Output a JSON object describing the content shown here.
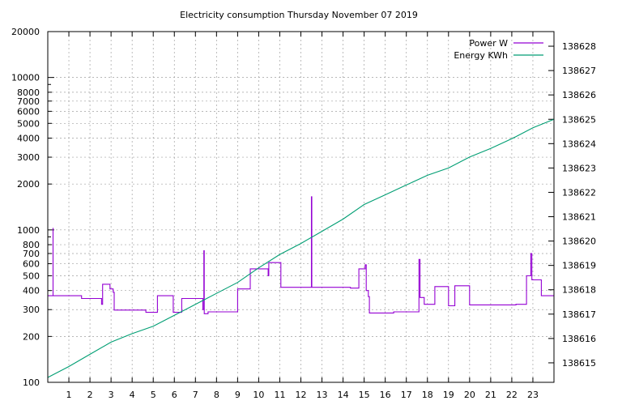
{
  "chart_data": {
    "type": "line",
    "title": "Electricity consumption Thursday November 07 2019",
    "xlabel": "",
    "ylabel": "",
    "y2label": "",
    "xlim": [
      0,
      24
    ],
    "ylim": [
      100,
      20000
    ],
    "yscale": "log",
    "y2lim": [
      138614.2,
      138628.6
    ],
    "x_ticks": [
      "1",
      "2",
      "3",
      "4",
      "5",
      "6",
      "7",
      "8",
      "9",
      "10",
      "11",
      "12",
      "13",
      "14",
      "15",
      "16",
      "17",
      "18",
      "19",
      "20",
      "21",
      "22",
      "23"
    ],
    "y_ticks": [
      "100",
      "200",
      "300",
      "400",
      "500",
      "600",
      "700",
      "800",
      "1000",
      "2000",
      "3000",
      "4000",
      "5000",
      "6000",
      "7000",
      "8000",
      "10000",
      "20000"
    ],
    "y2_ticks": [
      "138615",
      "138616",
      "138617",
      "138618",
      "138619",
      "138620",
      "138621",
      "138622",
      "138623",
      "138624",
      "138625",
      "138626",
      "138627",
      "138628"
    ],
    "grid": true,
    "legend_position": "top-right",
    "series": [
      {
        "name": "Power W",
        "axis": "left",
        "color": "#9400d3",
        "points": [
          [
            0,
            370
          ],
          [
            0.25,
            370
          ],
          [
            0.25,
            1030
          ],
          [
            0.25,
            370
          ],
          [
            1.6,
            370
          ],
          [
            1.6,
            355
          ],
          [
            2.55,
            355
          ],
          [
            2.55,
            325
          ],
          [
            2.6,
            325
          ],
          [
            2.6,
            440
          ],
          [
            2.95,
            440
          ],
          [
            2.95,
            410
          ],
          [
            3.1,
            410
          ],
          [
            3.1,
            390
          ],
          [
            3.15,
            390
          ],
          [
            3.15,
            298
          ],
          [
            4.65,
            298
          ],
          [
            4.65,
            288
          ],
          [
            5.2,
            288
          ],
          [
            5.2,
            370
          ],
          [
            5.95,
            370
          ],
          [
            5.95,
            288
          ],
          [
            6.35,
            288
          ],
          [
            6.35,
            355
          ],
          [
            7.35,
            355
          ],
          [
            7.35,
            300
          ],
          [
            7.4,
            300
          ],
          [
            7.4,
            730
          ],
          [
            7.42,
            730
          ],
          [
            7.42,
            282
          ],
          [
            7.6,
            282
          ],
          [
            7.6,
            290
          ],
          [
            9.0,
            290
          ],
          [
            9.0,
            410
          ],
          [
            9.6,
            410
          ],
          [
            9.6,
            555
          ],
          [
            10.45,
            555
          ],
          [
            10.45,
            500
          ],
          [
            10.48,
            500
          ],
          [
            10.48,
            610
          ],
          [
            11.05,
            610
          ],
          [
            11.05,
            420
          ],
          [
            12.5,
            420
          ],
          [
            12.5,
            1650
          ],
          [
            12.52,
            1650
          ],
          [
            12.52,
            420
          ],
          [
            14.35,
            420
          ],
          [
            14.35,
            415
          ],
          [
            14.75,
            415
          ],
          [
            14.75,
            555
          ],
          [
            15.05,
            555
          ],
          [
            15.05,
            590
          ],
          [
            15.1,
            590
          ],
          [
            15.1,
            400
          ],
          [
            15.2,
            400
          ],
          [
            15.2,
            365
          ],
          [
            15.25,
            365
          ],
          [
            15.25,
            285
          ],
          [
            16.4,
            285
          ],
          [
            16.4,
            290
          ],
          [
            17.6,
            290
          ],
          [
            17.6,
            640
          ],
          [
            17.65,
            640
          ],
          [
            17.65,
            360
          ],
          [
            17.85,
            360
          ],
          [
            17.85,
            325
          ],
          [
            18.35,
            325
          ],
          [
            18.35,
            425
          ],
          [
            19.0,
            425
          ],
          [
            19.0,
            318
          ],
          [
            19.3,
            318
          ],
          [
            19.3,
            430
          ],
          [
            20.0,
            430
          ],
          [
            20.0,
            322
          ],
          [
            22.2,
            322
          ],
          [
            22.2,
            325
          ],
          [
            22.7,
            325
          ],
          [
            22.7,
            500
          ],
          [
            22.9,
            500
          ],
          [
            22.9,
            700
          ],
          [
            22.95,
            700
          ],
          [
            22.95,
            470
          ],
          [
            23.4,
            470
          ],
          [
            23.4,
            370
          ],
          [
            24.0,
            370
          ]
        ]
      },
      {
        "name": "Energy KWh",
        "axis": "right",
        "color": "#009e73",
        "points": [
          [
            0,
            138614.4
          ],
          [
            1,
            138614.85
          ],
          [
            2,
            138615.35
          ],
          [
            3,
            138615.85
          ],
          [
            4,
            138616.2
          ],
          [
            5,
            138616.5
          ],
          [
            6,
            138616.95
          ],
          [
            7,
            138617.4
          ],
          [
            8,
            138617.85
          ],
          [
            9,
            138618.3
          ],
          [
            10,
            138618.9
          ],
          [
            11,
            138619.45
          ],
          [
            12,
            138619.9
          ],
          [
            13,
            138620.4
          ],
          [
            14,
            138620.9
          ],
          [
            15,
            138621.5
          ],
          [
            16,
            138621.9
          ],
          [
            17,
            138622.3
          ],
          [
            18,
            138622.7
          ],
          [
            19,
            138623.0
          ],
          [
            20,
            138623.45
          ],
          [
            21,
            138623.8
          ],
          [
            22,
            138624.2
          ],
          [
            23,
            138624.65
          ],
          [
            24,
            138625.0
          ]
        ]
      }
    ]
  }
}
